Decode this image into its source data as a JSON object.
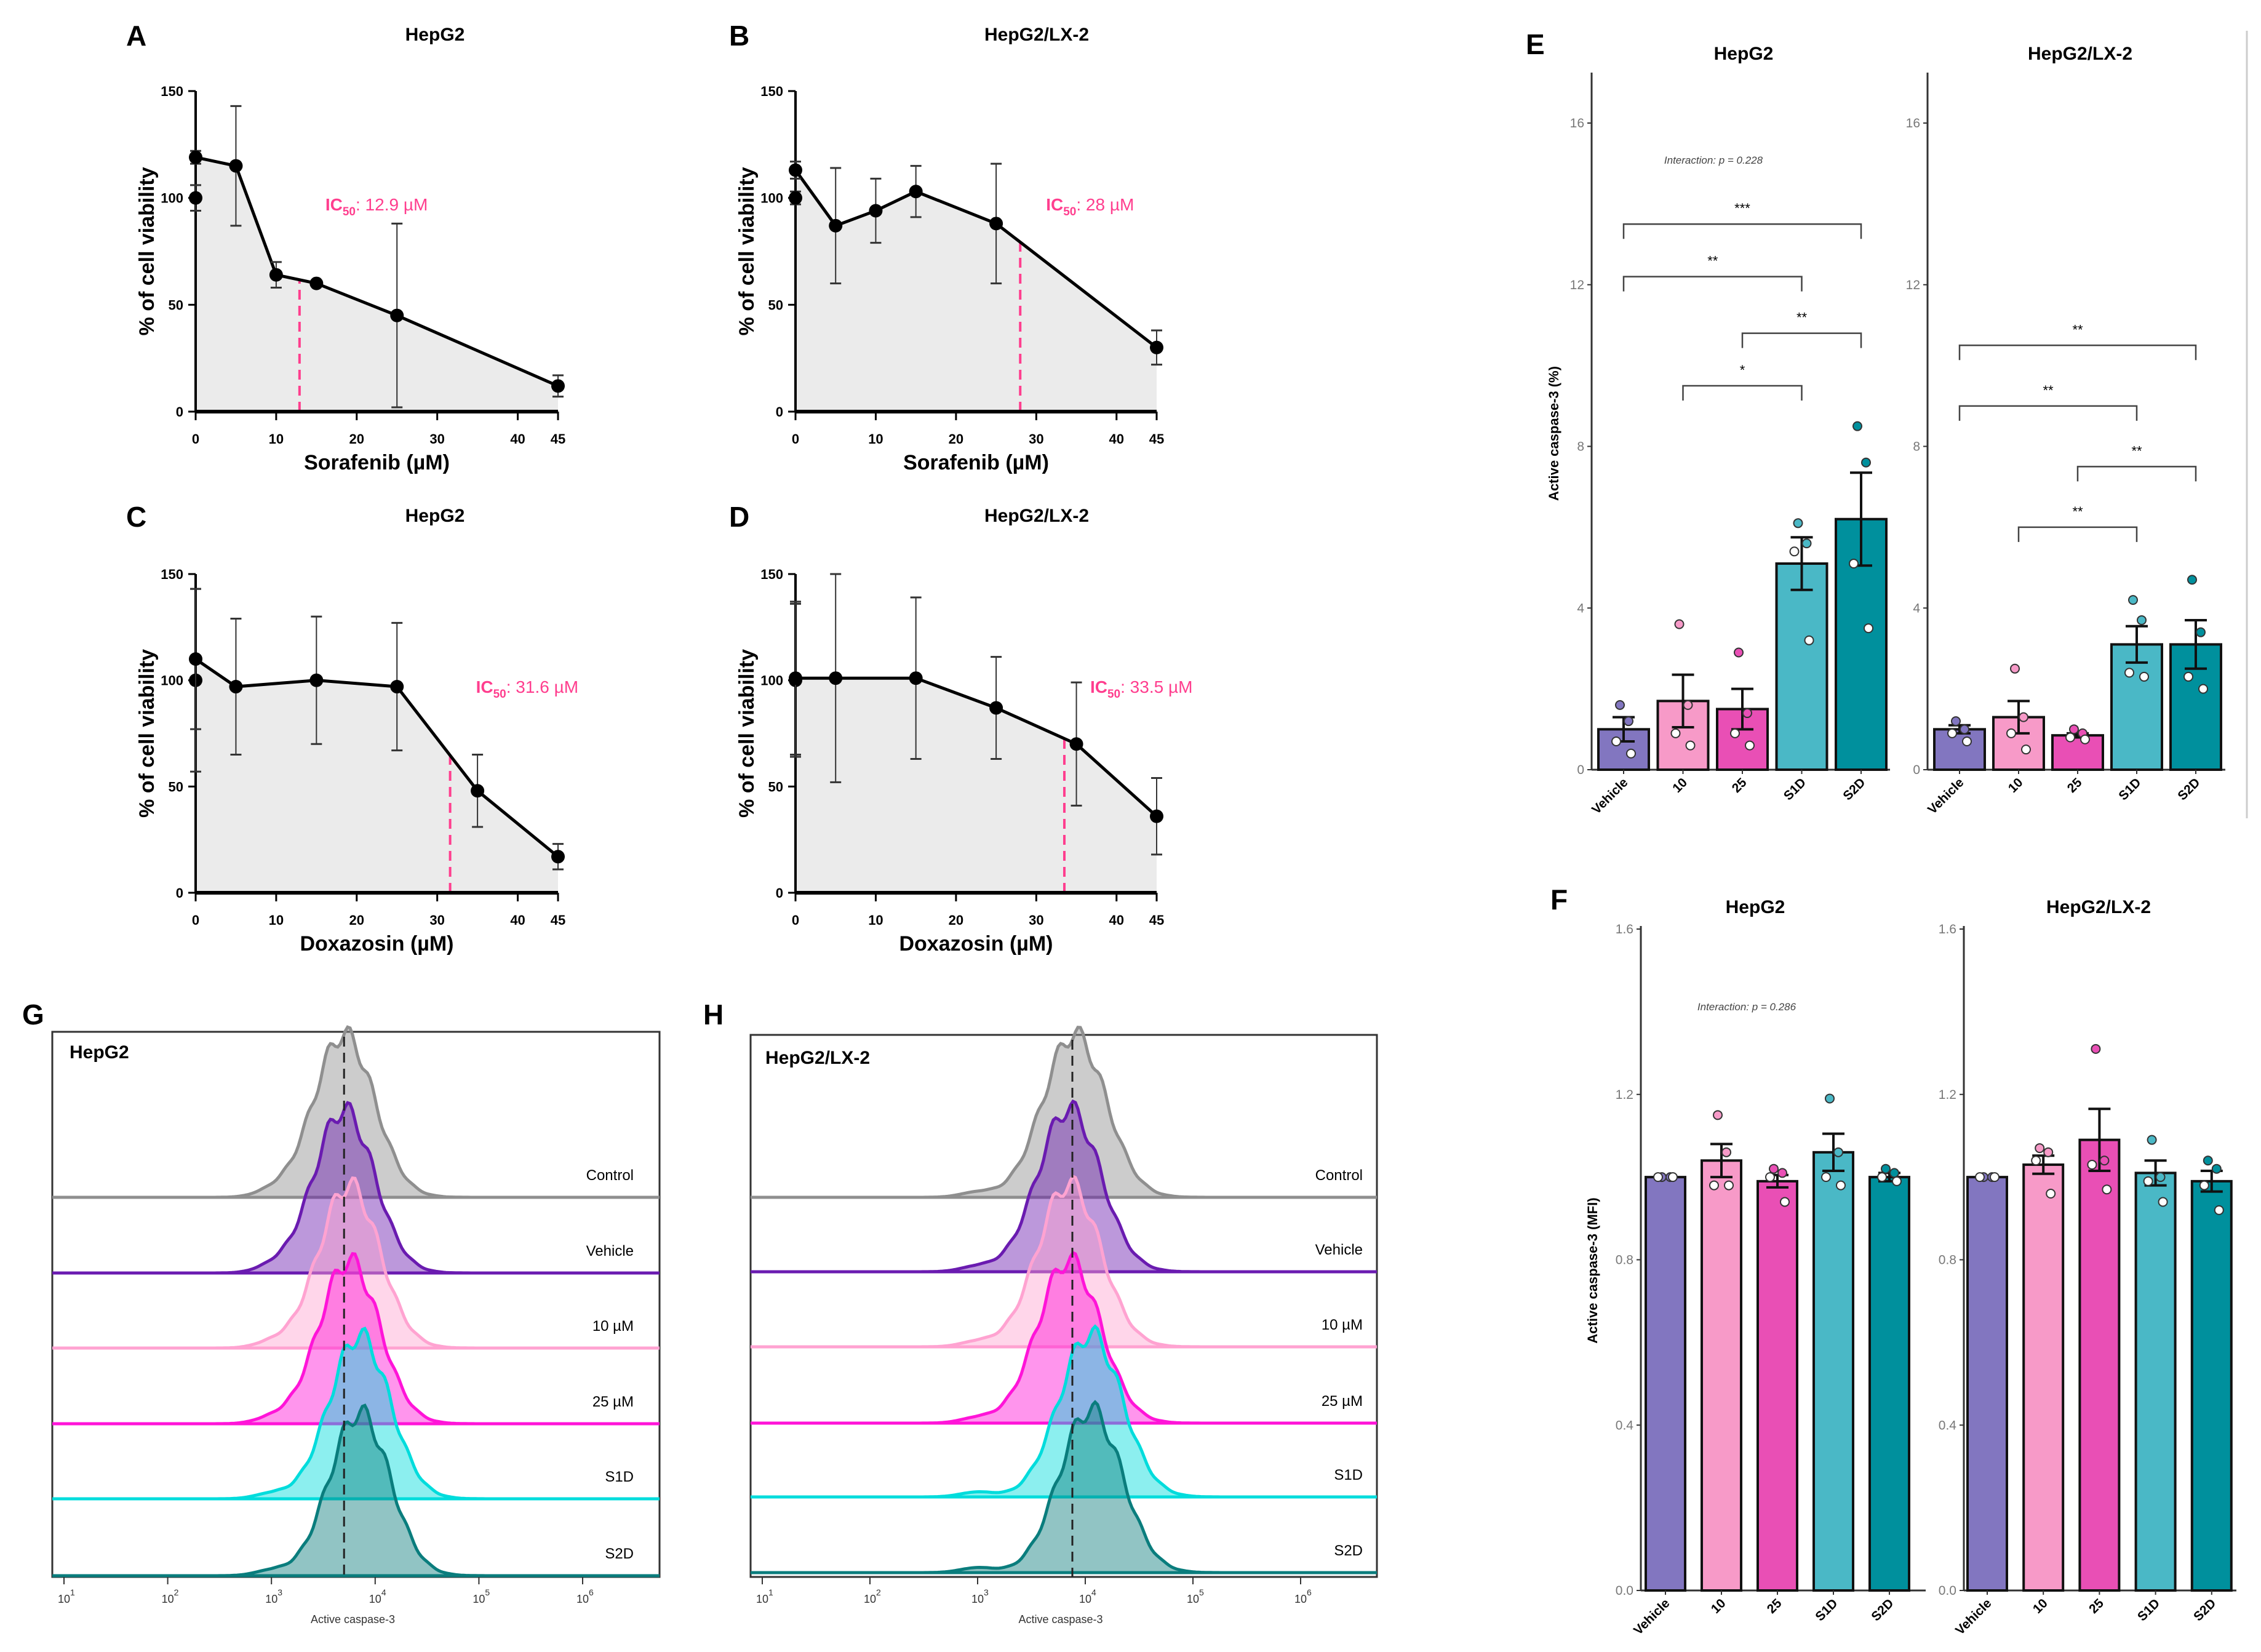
{
  "panels": {
    "A": "A",
    "B": "B",
    "C": "C",
    "D": "D",
    "E": "E",
    "F": "F",
    "G": "G",
    "H": "H"
  },
  "colors": {
    "fill_area": "#ebebeb",
    "ic50": "#ff3e8e",
    "bars": {
      "Vehicle": "#8276c0",
      "10": "#f79ac8",
      "25": "#e94fb5",
      "S1D": "#4ab8c6",
      "S2D": "#00909d"
    },
    "hist": {
      "Control": "#8f8f8f",
      "Vehicle": "#6a1bb0",
      "10 µM": "#ffa3d1",
      "25 µM": "#ff14d8",
      "S1D": "#00dcdc",
      "S2D": "#0a7d7d"
    }
  },
  "chart_data": [
    {
      "id": "A",
      "type": "line",
      "title": "HepG2",
      "xlabel": "Sorafenib (µM)",
      "ylabel": "% of cell viability",
      "xticks": [
        "0",
        "10",
        "20",
        "30",
        "40",
        "45"
      ],
      "yticks": [
        "0",
        "50",
        "100",
        "150"
      ],
      "xlim": [
        0,
        45
      ],
      "ylim": [
        0,
        150
      ],
      "control": {
        "x": 0,
        "y": 100,
        "err": 6
      },
      "points": [
        {
          "x": 0,
          "y": 119,
          "err": 3
        },
        {
          "x": 5,
          "y": 115,
          "err": 28
        },
        {
          "x": 10,
          "y": 64,
          "err": 6
        },
        {
          "x": 15,
          "y": 60,
          "err": 1
        },
        {
          "x": 25,
          "y": 45,
          "err": 43
        },
        {
          "x": 45,
          "y": 12,
          "err": 5
        }
      ],
      "ic50": {
        "x": 12.9,
        "prefix": "IC",
        "sub": "50",
        "text": ":  12.9  µM"
      }
    },
    {
      "id": "B",
      "type": "line",
      "title": "HepG2/LX-2",
      "xlabel": "Sorafenib (µM)",
      "ylabel": "% of cell viability",
      "xticks": [
        "0",
        "10",
        "20",
        "30",
        "40",
        "45"
      ],
      "yticks": [
        "0",
        "50",
        "100",
        "150"
      ],
      "xlim": [
        0,
        45
      ],
      "ylim": [
        0,
        150
      ],
      "control": {
        "x": 0,
        "y": 100,
        "err": 3
      },
      "points": [
        {
          "x": 0,
          "y": 113,
          "err": 4
        },
        {
          "x": 5,
          "y": 87,
          "err": 27
        },
        {
          "x": 10,
          "y": 94,
          "err": 15
        },
        {
          "x": 15,
          "y": 103,
          "err": 12
        },
        {
          "x": 25,
          "y": 88,
          "err": 28
        },
        {
          "x": 45,
          "y": 30,
          "err": 8
        }
      ],
      "ic50": {
        "x": 28,
        "prefix": "IC",
        "sub": "50",
        "text": ":  28  µM"
      }
    },
    {
      "id": "C",
      "type": "line",
      "title": "HepG2",
      "xlabel": "Doxazosin (µM)",
      "ylabel": "% of cell viability",
      "xticks": [
        "0",
        "10",
        "20",
        "30",
        "40",
        "45"
      ],
      "yticks": [
        "0",
        "50",
        "100",
        "150"
      ],
      "xlim": [
        0,
        45
      ],
      "ylim": [
        0,
        150
      ],
      "control": {
        "x": 0,
        "y": 100,
        "err": 43
      },
      "points": [
        {
          "x": 0,
          "y": 110,
          "err": 33
        },
        {
          "x": 5,
          "y": 97,
          "err": 32
        },
        {
          "x": 15,
          "y": 100,
          "err": 30
        },
        {
          "x": 25,
          "y": 97,
          "err": 30
        },
        {
          "x": 35,
          "y": 48,
          "err": 17
        },
        {
          "x": 45,
          "y": 17,
          "err": 6
        }
      ],
      "ic50": {
        "x": 31.6,
        "prefix": "IC",
        "sub": "50",
        "text": ":  31.6  µM"
      }
    },
    {
      "id": "D",
      "type": "line",
      "title": "HepG2/LX-2",
      "xlabel": "Doxazosin (µM)",
      "ylabel": "% of cell viability",
      "xticks": [
        "0",
        "10",
        "20",
        "30",
        "40",
        "45"
      ],
      "yticks": [
        "0",
        "50",
        "100",
        "150"
      ],
      "xlim": [
        0,
        45
      ],
      "ylim": [
        0,
        150
      ],
      "control": {
        "x": 0,
        "y": 100,
        "err": 36
      },
      "points": [
        {
          "x": 0,
          "y": 101,
          "err": 36
        },
        {
          "x": 5,
          "y": 101,
          "err": 49
        },
        {
          "x": 15,
          "y": 101,
          "err": 38
        },
        {
          "x": 25,
          "y": 87,
          "err": 24
        },
        {
          "x": 35,
          "y": 70,
          "err": 29
        },
        {
          "x": 45,
          "y": 36,
          "err": 18
        }
      ],
      "ic50": {
        "x": 33.5,
        "prefix": "IC",
        "sub": "50",
        "text": ":  33.5  µM"
      }
    },
    {
      "id": "E",
      "type": "bar",
      "ylabel": "Active caspase-3 (%)",
      "ylim": [
        0,
        17.5
      ],
      "yticks": [
        "0",
        "4",
        "8",
        "12",
        "16"
      ],
      "categories": [
        "Vehicle",
        "10",
        "25",
        "S1D",
        "S2D"
      ],
      "facets": [
        {
          "title": "HepG2",
          "interaction": "Interaction: p = 0.228",
          "values": [
            1.0,
            1.7,
            1.5,
            5.1,
            6.2
          ],
          "err": [
            0.3,
            0.65,
            0.5,
            0.65,
            1.15
          ],
          "points": [
            [
              1.6,
              1.2,
              0.7,
              0.4
            ],
            [
              3.6,
              1.6,
              0.9,
              0.6
            ],
            [
              2.9,
              1.4,
              0.9,
              0.6
            ],
            [
              6.1,
              5.6,
              5.4,
              3.2
            ],
            [
              8.5,
              7.6,
              5.1,
              3.5
            ]
          ],
          "brackets": [
            {
              "from": 0,
              "to": 4,
              "y": 13.5,
              "label": "***"
            },
            {
              "from": 0,
              "to": 3,
              "y": 12.2,
              "label": "**"
            },
            {
              "from": 2,
              "to": 4,
              "y": 10.8,
              "label": "**"
            },
            {
              "from": 1,
              "to": 3,
              "y": 9.5,
              "label": "*"
            }
          ]
        },
        {
          "title": "HepG2/LX-2",
          "interaction": "",
          "values": [
            1.0,
            1.3,
            0.85,
            3.1,
            3.1
          ],
          "err": [
            0.1,
            0.4,
            0.05,
            0.45,
            0.6
          ],
          "points": [
            [
              1.2,
              1.0,
              0.9,
              0.7
            ],
            [
              2.5,
              1.3,
              0.9,
              0.5
            ],
            [
              1.0,
              0.9,
              0.8,
              0.75
            ],
            [
              4.2,
              3.7,
              2.4,
              2.3
            ],
            [
              4.7,
              3.4,
              2.3,
              2.0
            ]
          ],
          "brackets": [
            {
              "from": 0,
              "to": 4,
              "y": 10.5,
              "label": "**"
            },
            {
              "from": 0,
              "to": 3,
              "y": 9.0,
              "label": "**"
            },
            {
              "from": 2,
              "to": 4,
              "y": 7.5,
              "label": "**"
            },
            {
              "from": 1,
              "to": 3,
              "y": 6.0,
              "label": "**"
            }
          ]
        }
      ]
    },
    {
      "id": "F",
      "type": "bar",
      "ylabel": "Active caspase-3 (MFI)",
      "ylim": [
        0,
        1.6
      ],
      "yticks": [
        "0.0",
        "0.4",
        "0.8",
        "1.2",
        "1.6"
      ],
      "categories": [
        "Vehicle",
        "10",
        "25",
        "S1D",
        "S2D"
      ],
      "facets": [
        {
          "title": "HepG2",
          "interaction": "Interaction: p = 0.286",
          "values": [
            1.0,
            1.04,
            0.99,
            1.06,
            1.0
          ],
          "err": [
            0.0,
            0.04,
            0.015,
            0.045,
            0.01
          ],
          "points": [
            [
              1.0,
              1.0,
              1.0,
              1.0
            ],
            [
              1.15,
              1.06,
              0.98,
              0.98
            ],
            [
              1.02,
              1.01,
              1.0,
              0.94
            ],
            [
              1.19,
              1.06,
              1.0,
              0.98
            ],
            [
              1.02,
              1.01,
              1.0,
              0.99
            ]
          ],
          "brackets": []
        },
        {
          "title": "HepG2/LX-2",
          "interaction": "",
          "values": [
            1.0,
            1.03,
            1.09,
            1.01,
            0.99
          ],
          "err": [
            0.0,
            0.022,
            0.075,
            0.03,
            0.025
          ],
          "points": [
            [
              1.0,
              1.0,
              1.0,
              1.0
            ],
            [
              1.07,
              1.06,
              1.04,
              0.96
            ],
            [
              1.31,
              1.04,
              1.03,
              0.97
            ],
            [
              1.09,
              1.0,
              0.99,
              0.94
            ],
            [
              1.04,
              1.02,
              0.98,
              0.92
            ]
          ],
          "brackets": []
        }
      ]
    },
    {
      "id": "G",
      "type": "area",
      "label": "HepG2",
      "xlabel": "Active caspase-3",
      "xscale": "log",
      "xlim_log10": [
        1,
        6.6
      ],
      "xticks": [
        "1",
        "2",
        "3",
        "4",
        "5",
        "6"
      ],
      "marker_log10": 3.7,
      "series": [
        {
          "name": "Control",
          "peak_log10": 3.7
        },
        {
          "name": "Vehicle",
          "peak_log10": 3.7
        },
        {
          "name": "10 µM",
          "peak_log10": 3.75
        },
        {
          "name": "25 µM",
          "peak_log10": 3.75
        },
        {
          "name": "S1D",
          "peak_log10": 3.85
        },
        {
          "name": "S2D",
          "peak_log10": 3.85
        }
      ]
    },
    {
      "id": "H",
      "type": "area",
      "label": "HepG2/LX-2",
      "xlabel": "Active caspase-3",
      "xscale": "log",
      "xlim_log10": [
        1,
        6.6
      ],
      "xticks": [
        "1",
        "2",
        "3",
        "4",
        "5",
        "6"
      ],
      "marker_log10": 3.88,
      "series": [
        {
          "name": "Control",
          "peak_log10": 3.9
        },
        {
          "name": "Vehicle",
          "peak_log10": 3.85
        },
        {
          "name": "10 µM",
          "peak_log10": 3.85
        },
        {
          "name": "25 µM",
          "peak_log10": 3.85
        },
        {
          "name": "S1D",
          "peak_log10": 4.05
        },
        {
          "name": "S2D",
          "peak_log10": 4.05
        }
      ]
    }
  ],
  "tick_base": "10"
}
